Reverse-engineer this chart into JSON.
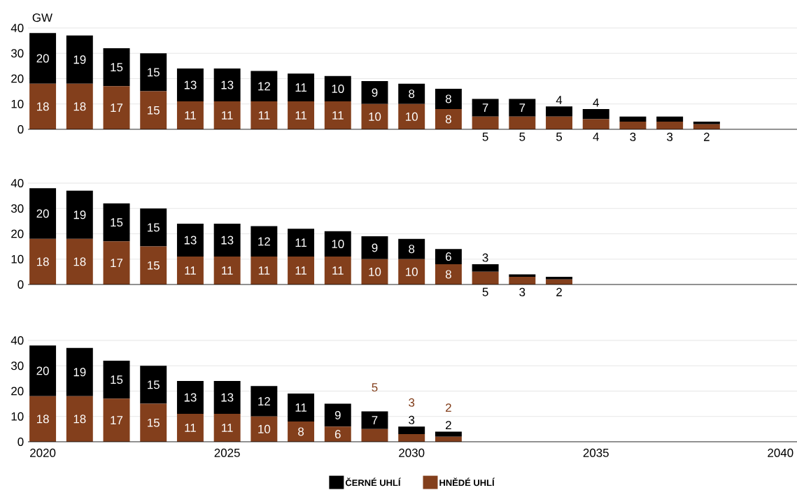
{
  "chart_data": [
    {
      "type": "bar",
      "stacked": true,
      "ylabel": "GW",
      "x": [
        2020,
        2021,
        2022,
        2023,
        2024,
        2025,
        2026,
        2027,
        2028,
        2029,
        2030,
        2031,
        2032,
        2033,
        2034,
        2035,
        2036,
        2037,
        2038
      ],
      "xlim": [
        2019.6,
        2040.45
      ],
      "xticks": [
        2020,
        2025,
        2030,
        2035,
        2040
      ],
      "ylim": [
        0,
        40
      ],
      "yticks": [
        0,
        10,
        20,
        30,
        40
      ],
      "grid": "y",
      "legend": false,
      "tick_labels": "y",
      "series": [
        {
          "color": "#833f1c",
          "values": [
            18,
            18,
            17,
            15,
            11,
            11,
            11,
            11,
            11,
            10,
            10,
            8,
            5,
            5,
            5,
            4,
            3,
            3,
            2
          ],
          "value_labels": [
            "18",
            "18",
            "17",
            "15",
            "11",
            "11",
            "11",
            "11",
            "11",
            "10",
            "10",
            "8",
            "5",
            "5",
            "5",
            "4",
            "3",
            "3",
            "2"
          ]
        },
        {
          "color": "#000000",
          "values": [
            20,
            19,
            15,
            15,
            13,
            13,
            12,
            11,
            10,
            9,
            8,
            8,
            7,
            7,
            4,
            4,
            2,
            2,
            1
          ],
          "value_labels": [
            "20",
            "19",
            "15",
            "15",
            "13",
            "13",
            "12",
            "11",
            "10",
            "9",
            "8",
            "8",
            "7",
            "7",
            "4",
            "4",
            null,
            null,
            null
          ]
        }
      ]
    },
    {
      "type": "bar",
      "stacked": true,
      "x": [
        2020,
        2021,
        2022,
        2023,
        2024,
        2025,
        2026,
        2027,
        2028,
        2029,
        2030,
        2031,
        2032,
        2033,
        2034
      ],
      "xlim": [
        2019.6,
        2040.45
      ],
      "xticks": [
        2020,
        2025,
        2030,
        2035,
        2040
      ],
      "ylim": [
        0,
        40
      ],
      "yticks": [
        0,
        10,
        20,
        30,
        40
      ],
      "grid": "y",
      "legend": false,
      "tick_labels": "y",
      "series": [
        {
          "color": "#833f1c",
          "values": [
            18,
            18,
            17,
            15,
            11,
            11,
            11,
            11,
            11,
            10,
            10,
            8,
            5,
            3,
            2
          ],
          "value_labels": [
            "18",
            "18",
            "17",
            "15",
            "11",
            "11",
            "11",
            "11",
            "11",
            "10",
            "10",
            "8",
            "5",
            "3",
            "2"
          ]
        },
        {
          "color": "#000000",
          "values": [
            20,
            19,
            15,
            15,
            13,
            13,
            12,
            11,
            10,
            9,
            8,
            6,
            3,
            1,
            1
          ],
          "value_labels": [
            "20",
            "19",
            "15",
            "15",
            "13",
            "13",
            "12",
            "11",
            "10",
            "9",
            "8",
            "6",
            "3",
            null,
            null
          ]
        }
      ]
    },
    {
      "type": "bar",
      "stacked": true,
      "x": [
        2020,
        2021,
        2022,
        2023,
        2024,
        2025,
        2026,
        2027,
        2028,
        2029,
        2030,
        2031
      ],
      "xlim": [
        2019.6,
        2040.45
      ],
      "xticks": [
        2020,
        2025,
        2030,
        2035,
        2040
      ],
      "ylim": [
        0,
        40
      ],
      "yticks": [
        0,
        10,
        20,
        30,
        40
      ],
      "grid": "y",
      "legend": "bottom",
      "series": [
        {
          "name": "HNĚDÉ UHLÍ",
          "color": "#833f1c",
          "values": [
            18,
            18,
            17,
            15,
            11,
            11,
            10,
            8,
            6,
            5,
            3,
            2
          ],
          "value_labels": [
            "18",
            "18",
            "17",
            "15",
            "11",
            "11",
            "10",
            "8",
            "6",
            "5",
            "3",
            "2"
          ]
        },
        {
          "name": "ČERNÉ UHLÍ",
          "color": "#000000",
          "values": [
            20,
            19,
            15,
            15,
            13,
            13,
            12,
            11,
            9,
            7,
            3,
            2
          ],
          "value_labels": [
            "20",
            "19",
            "15",
            "15",
            "13",
            "13",
            "12",
            "11",
            "9",
            "7",
            "3",
            "2"
          ]
        }
      ]
    }
  ]
}
